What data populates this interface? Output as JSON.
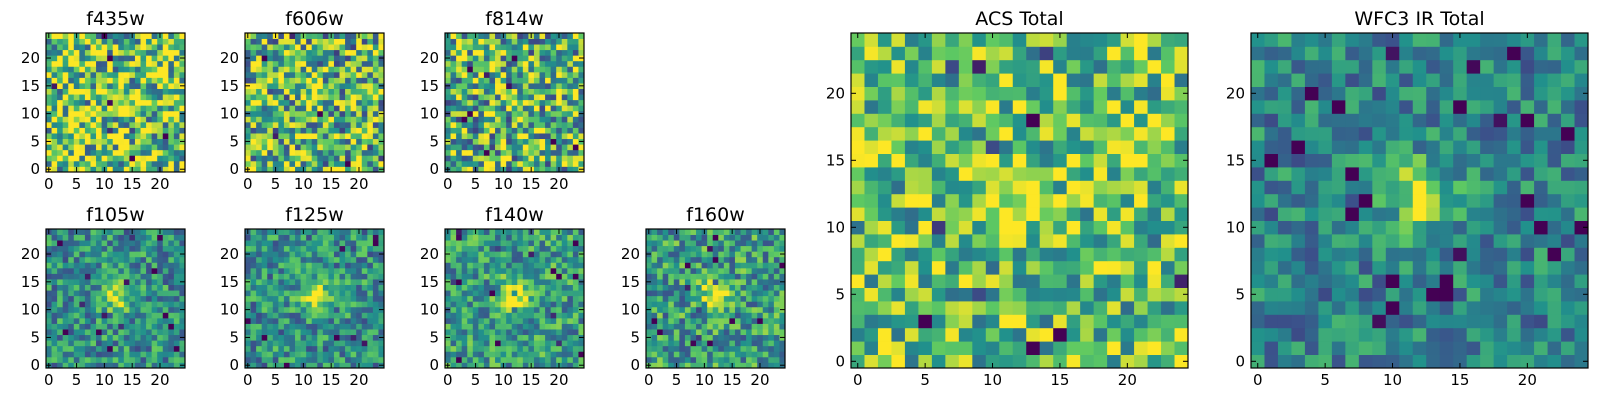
{
  "figure": {
    "colormap": "viridis",
    "colormap_stops": [
      "#440154",
      "#3b528b",
      "#21918c",
      "#5ec962",
      "#fde725"
    ]
  },
  "chart_data": [
    {
      "type": "heatmap",
      "title": "f435w",
      "grid": [
        25,
        25
      ],
      "noise": 0.95,
      "source_amplitude": 0.0,
      "background": 0.75,
      "x_ticks": [
        0,
        5,
        10,
        15,
        20
      ],
      "y_ticks": [
        0,
        5,
        10,
        15,
        20
      ],
      "xlim": [
        -0.5,
        24.5
      ],
      "ylim": [
        -0.5,
        24.5
      ]
    },
    {
      "type": "heatmap",
      "title": "f606w",
      "grid": [
        25,
        25
      ],
      "noise": 0.9,
      "source_amplitude": 0.25,
      "background": 0.65,
      "x_ticks": [
        0,
        5,
        10,
        15,
        20
      ],
      "y_ticks": [
        0,
        5,
        10,
        15,
        20
      ],
      "xlim": [
        -0.5,
        24.5
      ],
      "ylim": [
        -0.5,
        24.5
      ]
    },
    {
      "type": "heatmap",
      "title": "f814w",
      "grid": [
        25,
        25
      ],
      "noise": 0.9,
      "source_amplitude": 0.25,
      "background": 0.65,
      "x_ticks": [
        0,
        5,
        10,
        15,
        20
      ],
      "y_ticks": [
        0,
        5,
        10,
        15,
        20
      ],
      "xlim": [
        -0.5,
        24.5
      ],
      "ylim": [
        -0.5,
        24.5
      ]
    },
    {
      "type": "heatmap",
      "title": "f105w",
      "grid": [
        25,
        25
      ],
      "noise": 0.55,
      "source_amplitude": 0.45,
      "background": 0.5,
      "x_ticks": [
        0,
        5,
        10,
        15,
        20
      ],
      "y_ticks": [
        0,
        5,
        10,
        15,
        20
      ],
      "xlim": [
        -0.5,
        24.5
      ],
      "ylim": [
        -0.5,
        24.5
      ]
    },
    {
      "type": "heatmap",
      "title": "f125w",
      "grid": [
        25,
        25
      ],
      "noise": 0.55,
      "source_amplitude": 0.55,
      "background": 0.5,
      "x_ticks": [
        0,
        5,
        10,
        15,
        20
      ],
      "y_ticks": [
        0,
        5,
        10,
        15,
        20
      ],
      "xlim": [
        -0.5,
        24.5
      ],
      "ylim": [
        -0.5,
        24.5
      ]
    },
    {
      "type": "heatmap",
      "title": "f140w",
      "grid": [
        25,
        25
      ],
      "noise": 0.55,
      "source_amplitude": 0.55,
      "background": 0.55,
      "x_ticks": [
        0,
        5,
        10,
        15,
        20
      ],
      "y_ticks": [
        0,
        5,
        10,
        15,
        20
      ],
      "xlim": [
        -0.5,
        24.5
      ],
      "ylim": [
        -0.5,
        24.5
      ]
    },
    {
      "type": "heatmap",
      "title": "f160w",
      "grid": [
        25,
        25
      ],
      "noise": 0.6,
      "source_amplitude": 0.5,
      "background": 0.55,
      "x_ticks": [
        0,
        5,
        10,
        15,
        20
      ],
      "y_ticks": [
        0,
        5,
        10,
        15,
        20
      ],
      "xlim": [
        -0.5,
        24.5
      ],
      "ylim": [
        -0.5,
        24.5
      ]
    },
    {
      "type": "heatmap",
      "title": "ACS Total",
      "grid": [
        25,
        25
      ],
      "noise": 0.7,
      "source_amplitude": 0.3,
      "background": 0.7,
      "x_ticks": [
        0,
        5,
        10,
        15,
        20
      ],
      "y_ticks": [
        0,
        5,
        10,
        15,
        20
      ],
      "xlim": [
        -0.5,
        24.5
      ],
      "ylim": [
        -0.5,
        24.5
      ]
    },
    {
      "type": "heatmap",
      "title": "WFC3 IR Total",
      "grid": [
        25,
        25
      ],
      "noise": 0.45,
      "source_amplitude": 0.5,
      "background": 0.45,
      "x_ticks": [
        0,
        5,
        10,
        15,
        20
      ],
      "y_ticks": [
        0,
        5,
        10,
        15,
        20
      ],
      "xlim": [
        -0.5,
        24.5
      ],
      "ylim": [
        -0.5,
        24.5
      ]
    }
  ]
}
